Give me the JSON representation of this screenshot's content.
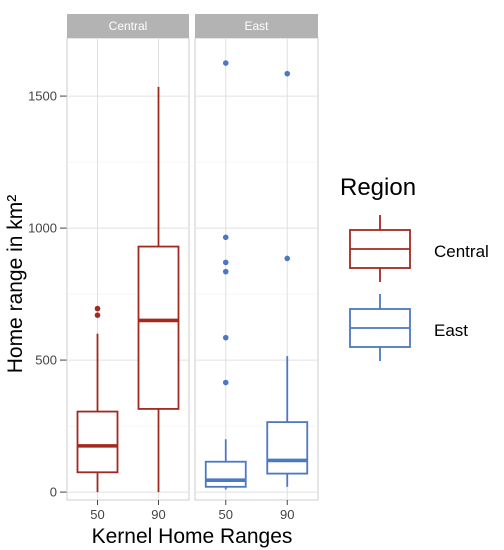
{
  "chart_data": {
    "type": "boxplot",
    "xlabel": "Kernel Home Ranges",
    "ylabel": "Home range in km²",
    "ylim": [
      -30,
      1720
    ],
    "yticks": [
      0,
      500,
      1000,
      1500
    ],
    "categories": [
      "50",
      "90"
    ],
    "facets": [
      "Central",
      "East"
    ],
    "grid": true,
    "legend": {
      "title": "Region",
      "position": "right",
      "entries": [
        "Central",
        "East"
      ]
    },
    "colors": {
      "Central": "#a3291f",
      "East": "#4a78c2",
      "strip": "#b3b3b3"
    },
    "series": [
      {
        "facet": "Central",
        "region": "Central",
        "boxes": [
          {
            "category": "50",
            "whisker_low": 0,
            "q1": 75,
            "median": 175,
            "q3": 305,
            "whisker_high": 600,
            "outliers": [
              670,
              695
            ]
          },
          {
            "category": "90",
            "whisker_low": 0,
            "q1": 315,
            "median": 650,
            "q3": 930,
            "whisker_high": 1535,
            "outliers": []
          }
        ]
      },
      {
        "facet": "East",
        "region": "East",
        "boxes": [
          {
            "category": "50",
            "whisker_low": 10,
            "q1": 20,
            "median": 45,
            "q3": 115,
            "whisker_high": 200,
            "outliers": [
              415,
              585,
              835,
              870,
              965,
              1625
            ]
          },
          {
            "category": "90",
            "whisker_low": 20,
            "q1": 70,
            "median": 120,
            "q3": 265,
            "whisker_high": 515,
            "outliers": [
              885,
              1585
            ]
          }
        ]
      }
    ]
  }
}
